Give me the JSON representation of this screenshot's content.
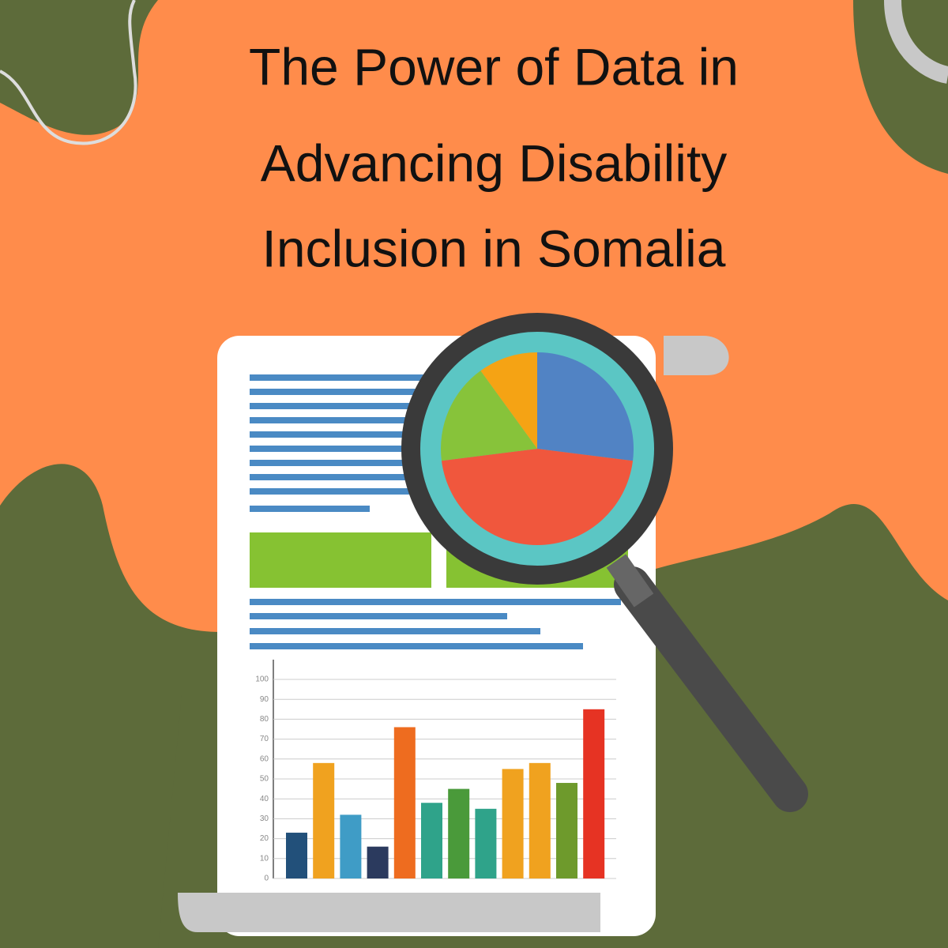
{
  "header": {
    "title_lines": [
      "The Power of Data in",
      "Advancing Disability",
      "Inclusion in Somalia"
    ]
  },
  "illustration": {
    "bar_chart": {
      "type": "bar",
      "ylim": [
        0,
        100
      ],
      "yticks": [
        0,
        10,
        20,
        30,
        40,
        50,
        60,
        70,
        80,
        90,
        100
      ],
      "grid": true,
      "values": [
        23,
        58,
        32,
        16,
        76,
        38,
        45,
        35,
        55,
        58,
        48,
        85
      ],
      "colors": [
        "#22507a",
        "#f0a21f",
        "#3f9cc6",
        "#2b3a5e",
        "#ee6c1f",
        "#2fa38a",
        "#4a9a3a",
        "#2fa38a",
        "#f0a21f",
        "#f0a21f",
        "#6e9a2c",
        "#e63323"
      ]
    },
    "pie_chart": {
      "type": "pie",
      "values": [
        27,
        46,
        17,
        10
      ],
      "colors": [
        "#5183c4",
        "#f0573d",
        "#87c33a",
        "#f5a314"
      ]
    }
  }
}
